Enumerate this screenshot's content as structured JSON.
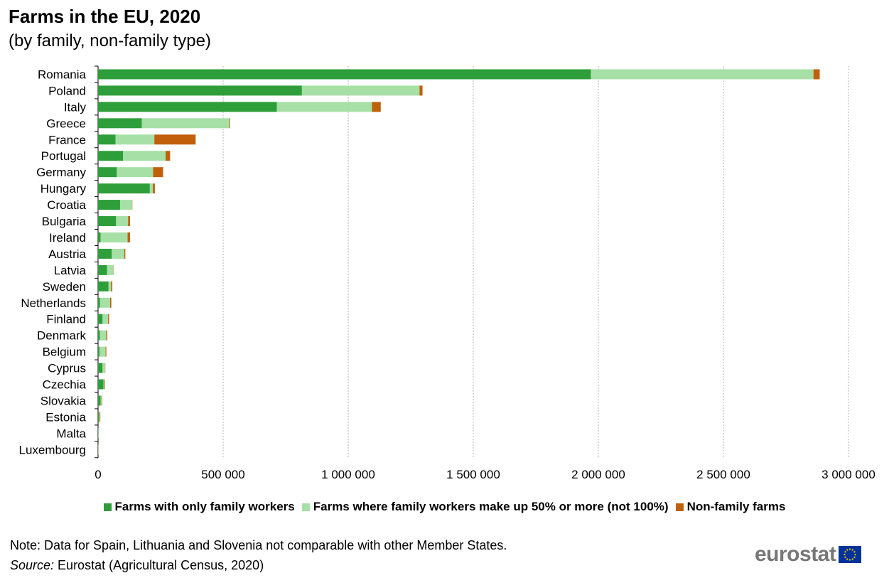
{
  "title": "Farms in the EU, 2020",
  "subtitle": "(by family, non-family type)",
  "note": "Note: Data for Spain, Lithuania  and Slovenia  not comparable with other Member States.",
  "source_label": "Source:",
  "source_text": " Eurostat (Agricultural Census, 2020)",
  "logo_text": "eurostat",
  "legend": [
    {
      "label": "Farms with only family workers",
      "color": "#2e9e3a"
    },
    {
      "label": "Farms where family workers make up 50% or more (not 100%)",
      "color": "#a6e0a6"
    },
    {
      "label": "Non-family farms",
      "color": "#c0600a"
    }
  ],
  "chart_data": {
    "type": "bar",
    "orientation": "horizontal",
    "stacked": true,
    "categories": [
      "Romania",
      "Poland",
      "Italy",
      "Greece",
      "France",
      "Portugal",
      "Germany",
      "Hungary",
      "Croatia",
      "Bulgaria",
      "Ireland",
      "Austria",
      "Latvia",
      "Sweden",
      "Netherlands",
      "Finland",
      "Denmark",
      "Belgium",
      "Cyprus",
      "Czechia",
      "Slovakia",
      "Estonia",
      "Malta",
      "Luxembourg"
    ],
    "series": [
      {
        "name": "Farms with only family workers",
        "color": "#2e9e3a",
        "values": [
          1970000,
          815000,
          715000,
          175000,
          70000,
          100000,
          75000,
          207000,
          88000,
          72000,
          10000,
          55000,
          36000,
          42000,
          8000,
          18000,
          7000,
          6000,
          18000,
          22000,
          10000,
          4000,
          1500,
          300
        ]
      },
      {
        "name": "Farms where family workers make up 50% or more (not 100%)",
        "color": "#a6e0a6",
        "values": [
          890000,
          470000,
          380000,
          350000,
          155000,
          170000,
          145000,
          12000,
          48000,
          48000,
          108000,
          50000,
          26000,
          10000,
          40000,
          22000,
          26000,
          24000,
          10000,
          4000,
          4000,
          3000,
          200,
          800
        ]
      },
      {
        "name": "Non-family farms",
        "color": "#c0600a",
        "values": [
          25000,
          12000,
          35000,
          3000,
          165000,
          18000,
          40000,
          8000,
          1000,
          8000,
          10000,
          4000,
          1000,
          5000,
          5000,
          4000,
          4000,
          3000,
          1000,
          2000,
          2000,
          2000,
          100,
          200
        ]
      }
    ],
    "xlim": [
      0,
      3000000
    ],
    "xticks": [
      0,
      500000,
      1000000,
      1500000,
      2000000,
      2500000,
      3000000
    ],
    "xtick_labels": [
      "0",
      "500 000",
      "1 000 000",
      "1 500 000",
      "2 000 000",
      "2 500 000",
      "3 000 000"
    ],
    "grid": "vertical-dashed",
    "legend_position": "bottom"
  }
}
